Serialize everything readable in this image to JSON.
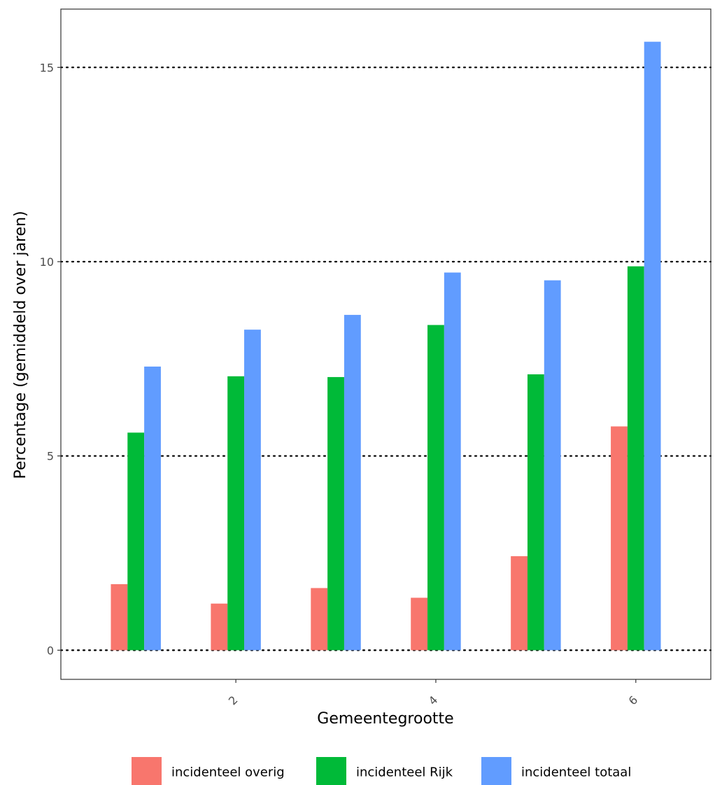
{
  "chart_data": {
    "type": "bar",
    "title": "",
    "xlabel": "Gemeentegrootte",
    "ylabel": "Percentage (gemiddeld over jaren)",
    "x": [
      1,
      2,
      3,
      4,
      5,
      6
    ],
    "xlim": [
      0.25,
      6.75
    ],
    "ylim": [
      -0.75,
      16.5
    ],
    "x_ticks": [
      2,
      4,
      6
    ],
    "x_tick_labels": [
      "2",
      "4",
      "6"
    ],
    "y_ticks": [
      0,
      5,
      10,
      15
    ],
    "y_tick_labels": [
      "0",
      "5",
      "10",
      "15"
    ],
    "grid": "horizontal dotted",
    "legend_position": "bottom",
    "series": [
      {
        "name": "incidenteel overig",
        "color": "#F8766D",
        "values": [
          1.7,
          1.2,
          1.6,
          1.35,
          2.42,
          5.76
        ]
      },
      {
        "name": "incidenteel Rijk",
        "color": "#00BA38",
        "values": [
          5.6,
          7.05,
          7.03,
          8.37,
          7.1,
          9.88
        ]
      },
      {
        "name": "incidenteel totaal",
        "color": "#619CFF",
        "values": [
          7.3,
          8.25,
          8.63,
          9.72,
          9.52,
          15.66
        ]
      }
    ]
  }
}
